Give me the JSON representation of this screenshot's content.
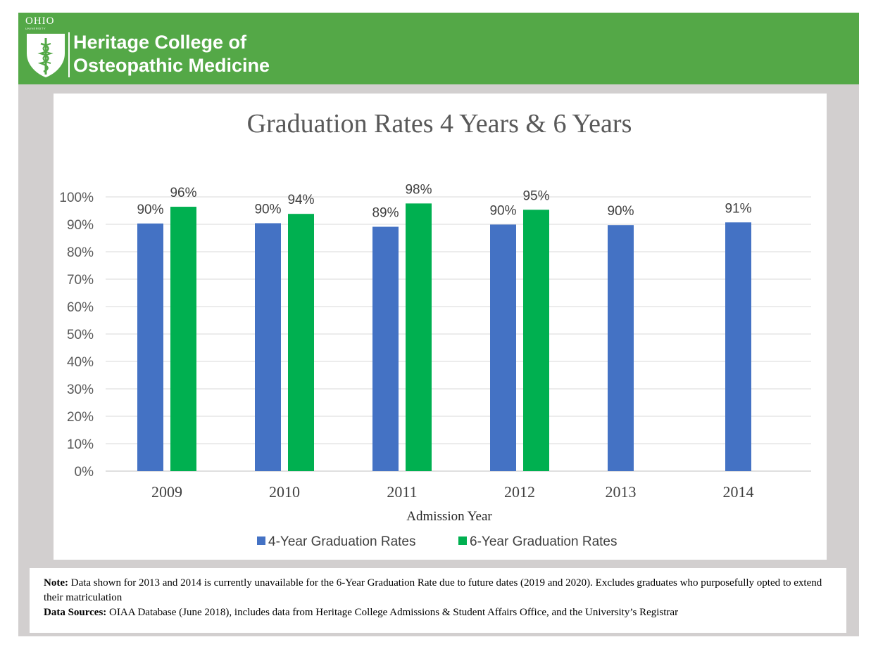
{
  "header": {
    "university": "OHIO",
    "university_sub": "UNIVERSITY",
    "college_line1": "Heritage College of",
    "college_line2": "Osteopathic Medicine",
    "brand_color": "#54a847",
    "logo_icon": "shield-caduceus-icon"
  },
  "chart_data": {
    "type": "bar",
    "title": "Graduation Rates 4 Years & 6 Years",
    "xlabel": "Admission Year",
    "ylabel": "",
    "categories": [
      "2009",
      "2010",
      "2011",
      "2012",
      "2013",
      "2014"
    ],
    "series": [
      {
        "name": "4-Year Graduation Rates",
        "color": "#4472c4",
        "values": [
          90.3,
          90.4,
          89.1,
          89.9,
          89.7,
          90.7
        ],
        "labels": [
          "90%",
          "90%",
          "89%",
          "90%",
          "90%",
          "91%"
        ]
      },
      {
        "name": "6-Year Graduation Rates",
        "color": "#00b050",
        "values": [
          96.4,
          93.8,
          97.6,
          95.3,
          null,
          null
        ],
        "labels": [
          "96%",
          "94%",
          "98%",
          "95%",
          "",
          ""
        ]
      }
    ],
    "ylim": [
      0,
      100
    ],
    "yticks": [
      "0%",
      "10%",
      "20%",
      "30%",
      "40%",
      "50%",
      "60%",
      "70%",
      "80%",
      "90%",
      "100%"
    ],
    "grid": true,
    "legend_position": "bottom"
  },
  "note": {
    "note_label": "Note:",
    "note_text": " Data shown for 2013 and 2014 is currently unavailable for the 6-Year Graduation Rate due to future dates (2019 and 2020). Excludes graduates who purposefully opted to extend their matriculation",
    "sources_label": "Data Sources:",
    "sources_text": " OIAA Database (June 2018), includes data from Heritage College Admissions & Student Affairs Office, and the University’s Registrar"
  }
}
